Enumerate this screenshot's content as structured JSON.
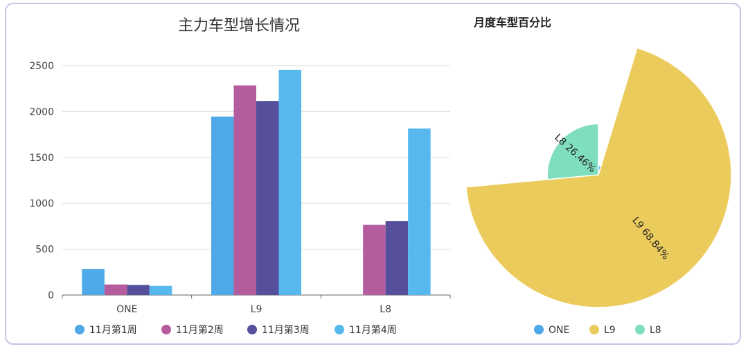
{
  "colors": {
    "s1": "#4fa8e8",
    "s2": "#b45c9e",
    "s3": "#554f9c",
    "s4": "#57b8ee",
    "pie_one": "#4fa8e8",
    "pie_l9": "#eccb5d",
    "pie_l8": "#7fddc0"
  },
  "chart_data": [
    {
      "type": "bar",
      "title": "主力车型增长情况",
      "categories": [
        "ONE",
        "L9",
        "L8"
      ],
      "ylim": [
        0,
        2500
      ],
      "yticks": [
        "0",
        "500",
        "1000",
        "1500",
        "2000",
        "2500"
      ],
      "series": [
        {
          "name": "11月第1周",
          "values": [
            285,
            1945,
            0
          ]
        },
        {
          "name": "11月第2周",
          "values": [
            115,
            2285,
            765
          ]
        },
        {
          "name": "11月第3周",
          "values": [
            110,
            2115,
            805
          ]
        },
        {
          "name": "11月第4周",
          "values": [
            100,
            2455,
            1815
          ]
        }
      ],
      "legend": "bottom"
    },
    {
      "type": "pie",
      "style": "rose",
      "title": "月度车型百分比",
      "labels": [
        "ONE",
        "L9",
        "L8"
      ],
      "values": [
        4.7,
        68.84,
        26.46
      ],
      "slice_labels": [
        "",
        "L9  68.84%",
        "L8  26.46%"
      ],
      "legend": "bottom-right"
    }
  ]
}
